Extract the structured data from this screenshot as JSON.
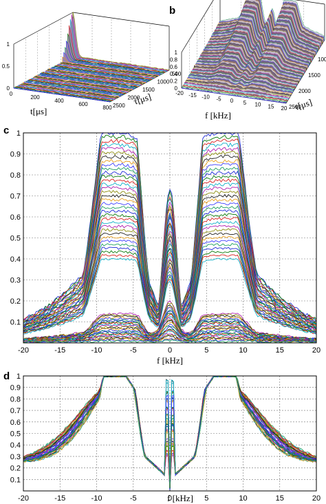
{
  "panels": {
    "a": {
      "letter": ""
    },
    "b": {
      "letter": "b"
    },
    "c": {
      "letter": "c"
    },
    "d": {
      "letter": "d"
    }
  },
  "palette": [
    "#1f2bd8",
    "#0a7a0a",
    "#d81f1f",
    "#12b0c8",
    "#b01fb0",
    "#8c8c10",
    "#222222",
    "#e8a020",
    "#4040ff",
    "#20a060"
  ],
  "chart_data": [
    {
      "id": "a",
      "type": "surface",
      "title": "",
      "xlabel": "t[μs]",
      "ylabel": "τ[μs]",
      "xlim": [
        0,
        800
      ],
      "ylim": [
        500,
        2500
      ],
      "zlim": [
        0,
        1
      ],
      "x_ticks": [
        "0",
        "200",
        "400",
        "600",
        "800"
      ],
      "y_ticks": [
        "500",
        "1000",
        "1500",
        "2000",
        "2500"
      ],
      "z_ticks": [
        "0",
        "0.5",
        "1"
      ],
      "peak": {
        "t": 30,
        "tau": 500,
        "z": 1.0
      }
    },
    {
      "id": "b",
      "type": "surface",
      "title": "",
      "xlabel": "f [kHz]",
      "ylabel": "τ[μs]",
      "xlim": [
        -20,
        20
      ],
      "ylim": [
        500,
        2500
      ],
      "zlim": [
        0,
        1
      ],
      "x_ticks": [
        "-20",
        "-15",
        "-10",
        "-5",
        "0",
        "5",
        "10",
        "15",
        "20"
      ],
      "y_ticks": [
        "500",
        "1000",
        "1500",
        "2000",
        "2500"
      ],
      "z_ticks": [
        "0",
        "0.2",
        "0.4",
        "0.6",
        "0.8",
        "1"
      ]
    },
    {
      "id": "c",
      "type": "line",
      "title": "",
      "xlabel": "f [kHz]",
      "ylabel": "",
      "xlim": [
        -20,
        20
      ],
      "ylim": [
        0,
        1
      ],
      "x_ticks": [
        "-20",
        "-15",
        "-10",
        "-5",
        "0",
        "5",
        "10",
        "15",
        "20"
      ],
      "y_ticks": [
        "0.1",
        "0.2",
        "0.3",
        "0.4",
        "0.5",
        "0.6",
        "0.7",
        "0.8",
        "0.9",
        "1"
      ],
      "grid": true,
      "n_curves": 60,
      "envelope": {
        "peaks_khz": [
          -8.5,
          -5.5,
          5.5,
          8.5
        ],
        "peak_value": 1.0,
        "center_peak_value": 0.73,
        "value_at_edges": 0.28
      }
    },
    {
      "id": "d",
      "type": "line",
      "title": "",
      "xlabel": "f [kHz]",
      "ylabel": "",
      "xlim": [
        -20,
        20
      ],
      "ylim": [
        0,
        1
      ],
      "x_ticks": [
        "-20",
        "-15",
        "-10",
        "-5",
        "0",
        "5",
        "10",
        "15",
        "20"
      ],
      "y_ticks": [
        "0.1",
        "0.2",
        "0.3",
        "0.4",
        "0.5",
        "0.6",
        "0.7",
        "0.8",
        "0.9",
        "1"
      ],
      "grid": true,
      "n_curves": 40,
      "normalized": true,
      "envelope": {
        "peaks_khz": [
          -8.5,
          -5.5,
          5.5,
          8.5
        ],
        "peak_value": 1.0,
        "center_peak_value": 0.97,
        "center_dip_value": 0.0,
        "value_at_edges": 0.25
      }
    }
  ]
}
